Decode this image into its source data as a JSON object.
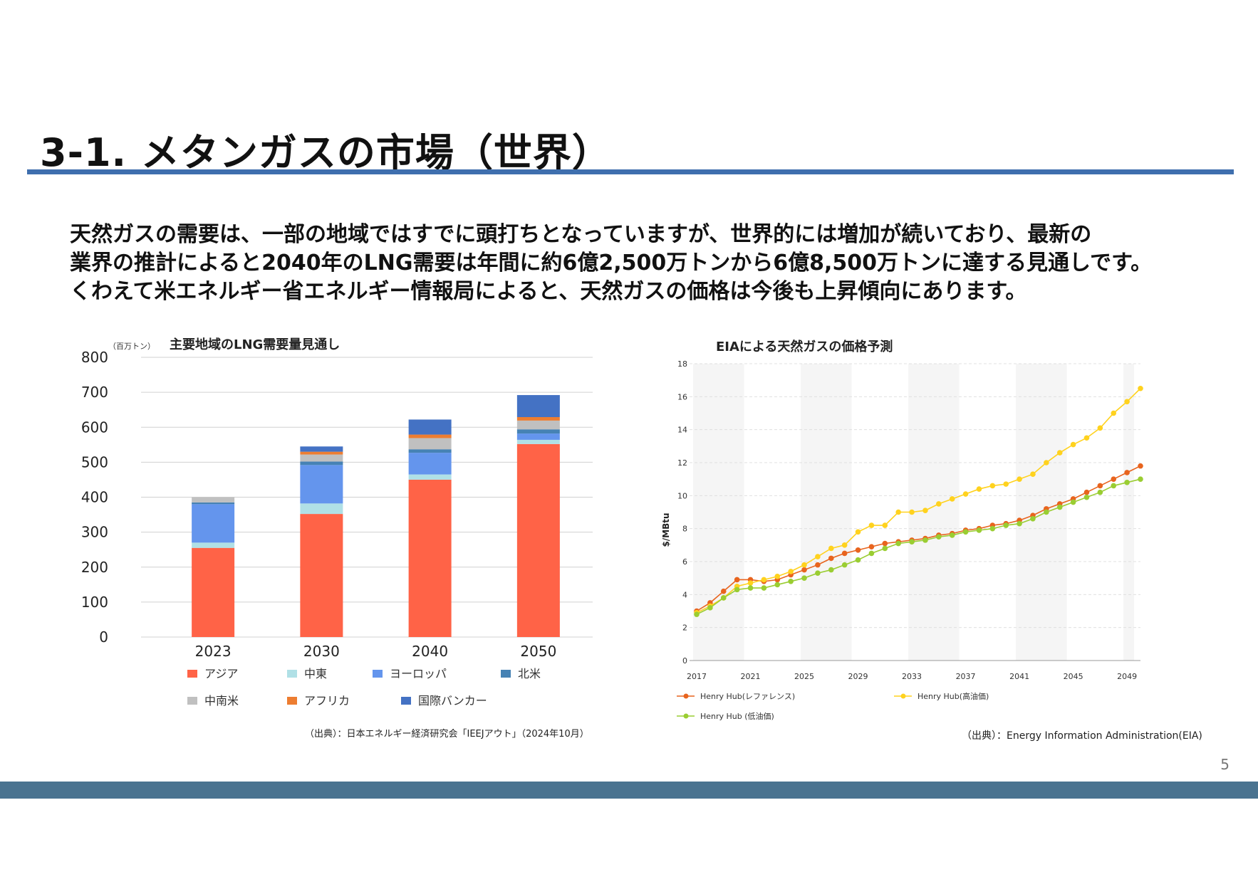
{
  "slide": {
    "title": "3-1. メタンガスの市場（世界）",
    "intro_lines": [
      "天然ガスの需要は、一部の地域ではすでに頭打ちとなっていますが、世界的には増加が続いており、最新の",
      "業界の推計によると2040年のLNG需要は年間に約6億2,500万トンから6億8,500万トンに達する見通しです。",
      "くわえて米エネルギー省エネルギー情報局によると、天然ガスの価格は今後も上昇傾向にあります。"
    ],
    "page_number": "5",
    "colors": {
      "title_rule": "#3f6fae",
      "footer_bar": "#4a7390"
    }
  },
  "chart_data": [
    {
      "type": "bar",
      "stacked": true,
      "title": "主要地域のLNG需要量見通し",
      "unit_label": "（百万トン）",
      "categories": [
        "2023",
        "2030",
        "2040",
        "2050"
      ],
      "ylim": [
        0,
        800
      ],
      "yticks": [
        0,
        100,
        200,
        300,
        400,
        500,
        600,
        700,
        800
      ],
      "grid": true,
      "legend_position": "bottom",
      "series": [
        {
          "name": "アジア",
          "color": "#ff6347",
          "values": [
            255,
            352,
            450,
            552
          ]
        },
        {
          "name": "中東",
          "color": "#b0e0e6",
          "values": [
            15,
            30,
            15,
            12
          ]
        },
        {
          "name": "ヨーロッパ",
          "color": "#6495ed",
          "values": [
            110,
            110,
            62,
            18
          ]
        },
        {
          "name": "北米",
          "color": "#4682b4",
          "values": [
            5,
            10,
            10,
            12
          ]
        },
        {
          "name": "中南米",
          "color": "#c0c0c0",
          "values": [
            15,
            20,
            32,
            25
          ]
        },
        {
          "name": "アフリカ",
          "color": "#ed7d31",
          "values": [
            0,
            8,
            10,
            10
          ]
        },
        {
          "name": "国際バンカー",
          "color": "#4472c4",
          "values": [
            0,
            15,
            43,
            63
          ]
        }
      ],
      "source": "（出典）：日本エネルギー経済研究会「IEEJアウト」（2024年10月）"
    },
    {
      "type": "line",
      "title": "EIAによる天然ガスの価格予測",
      "ylabel": "$/MBtu",
      "ylim": [
        0,
        18
      ],
      "yticks": [
        0,
        2,
        4,
        6,
        8,
        10,
        12,
        14,
        16,
        18
      ],
      "x": [
        2017,
        2018,
        2019,
        2020,
        2021,
        2022,
        2023,
        2024,
        2025,
        2026,
        2027,
        2028,
        2029,
        2030,
        2031,
        2032,
        2033,
        2034,
        2035,
        2036,
        2037,
        2038,
        2039,
        2040,
        2041,
        2042,
        2043,
        2044,
        2045,
        2046,
        2047,
        2048,
        2049,
        2050
      ],
      "xticks": [
        2017,
        2021,
        2025,
        2029,
        2033,
        2037,
        2041,
        2045,
        2049
      ],
      "legend_position": "bottom",
      "series": [
        {
          "name": "Henry Hub(レファレンス)",
          "color": "#e8641e",
          "values": [
            3.0,
            3.5,
            4.2,
            4.9,
            4.9,
            4.8,
            4.9,
            5.2,
            5.5,
            5.8,
            6.2,
            6.5,
            6.7,
            6.9,
            7.1,
            7.2,
            7.3,
            7.4,
            7.6,
            7.7,
            7.9,
            8.0,
            8.2,
            8.3,
            8.5,
            8.8,
            9.2,
            9.5,
            9.8,
            10.2,
            10.6,
            11.0,
            11.4,
            11.8
          ]
        },
        {
          "name": "Henry Hub(高油価)",
          "color": "#ffd21e",
          "values": [
            2.9,
            3.3,
            3.8,
            4.5,
            4.7,
            4.9,
            5.1,
            5.4,
            5.8,
            6.3,
            6.8,
            7.0,
            7.8,
            8.2,
            8.2,
            9.0,
            9.0,
            9.1,
            9.5,
            9.8,
            10.1,
            10.4,
            10.6,
            10.7,
            11.0,
            11.3,
            12.0,
            12.6,
            13.1,
            13.5,
            14.1,
            15.0,
            15.7,
            16.5
          ]
        },
        {
          "name": "Henry Hub (低油価)",
          "color": "#9acd32",
          "values": [
            2.8,
            3.2,
            3.8,
            4.3,
            4.4,
            4.4,
            4.6,
            4.8,
            5.0,
            5.3,
            5.5,
            5.8,
            6.1,
            6.5,
            6.8,
            7.1,
            7.2,
            7.3,
            7.5,
            7.6,
            7.8,
            7.9,
            8.0,
            8.2,
            8.3,
            8.6,
            9.0,
            9.3,
            9.6,
            9.9,
            10.2,
            10.6,
            10.8,
            11.0
          ]
        }
      ],
      "source": "（出典）：Energy Information Administration(EIA)"
    }
  ]
}
